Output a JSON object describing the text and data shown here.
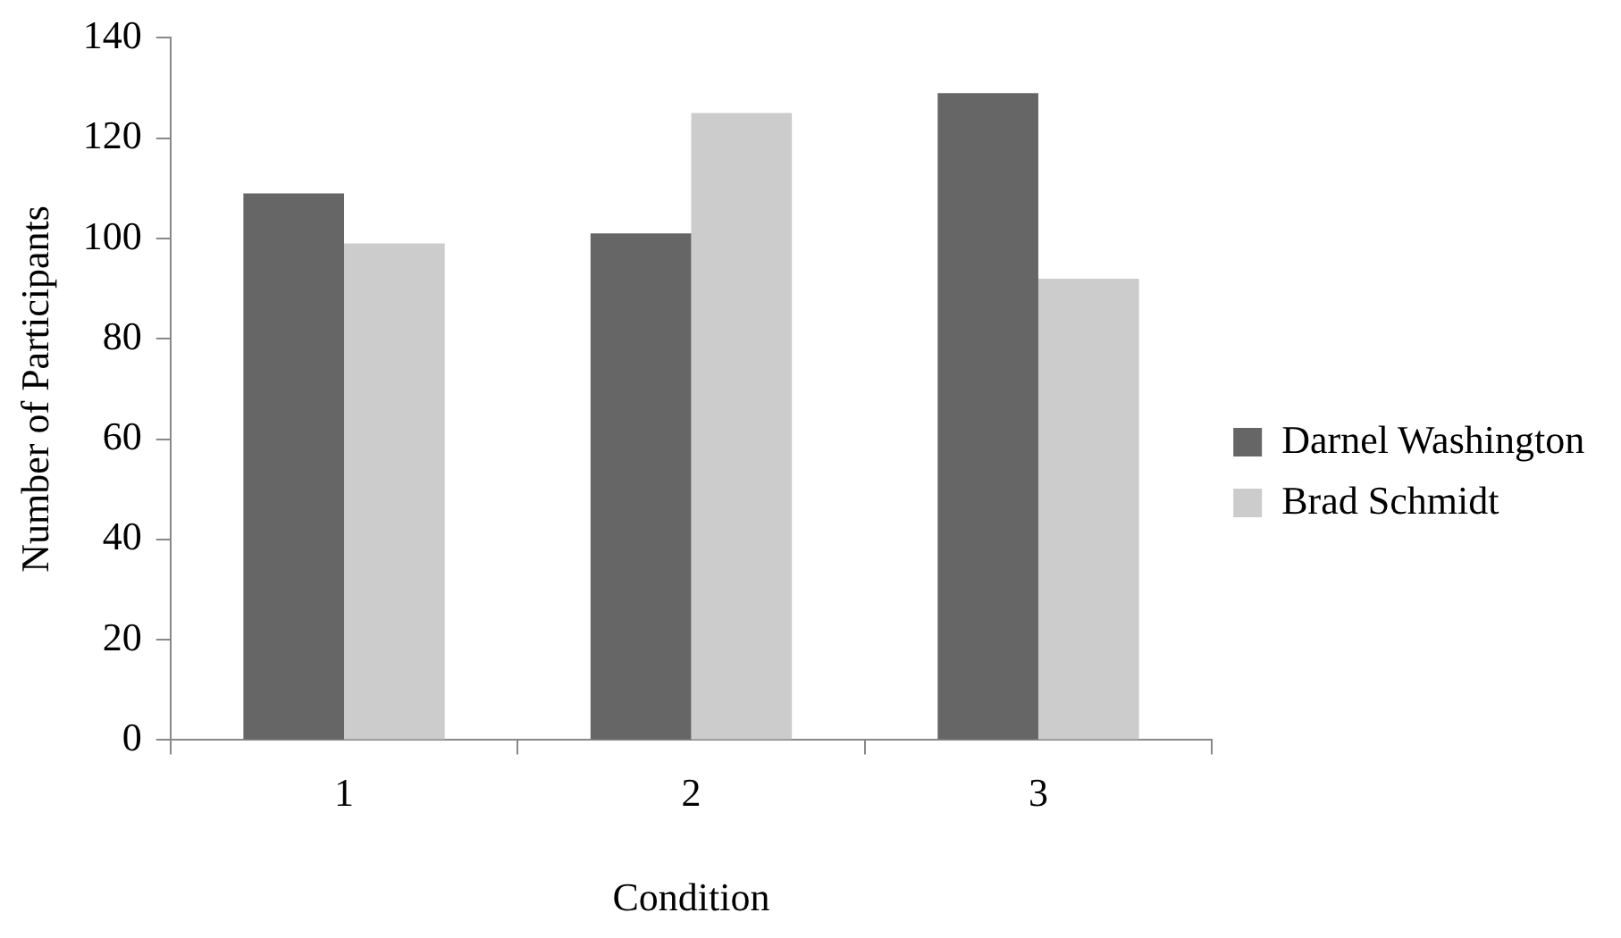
{
  "chart_data": {
    "type": "bar",
    "xlabel": "Condition",
    "ylabel": "Number of Participants",
    "categories": [
      "1",
      "2",
      "3"
    ],
    "series": [
      {
        "name": "Darnel Washington",
        "color": "#666666",
        "values": [
          109,
          101,
          129
        ]
      },
      {
        "name": "Brad Schmidt",
        "color": "#cccccc",
        "values": [
          99,
          125,
          92
        ]
      }
    ],
    "ylim": [
      0,
      140
    ],
    "yticks": [
      0,
      20,
      40,
      60,
      80,
      100,
      120,
      140
    ],
    "grid": false,
    "legend": "right"
  }
}
